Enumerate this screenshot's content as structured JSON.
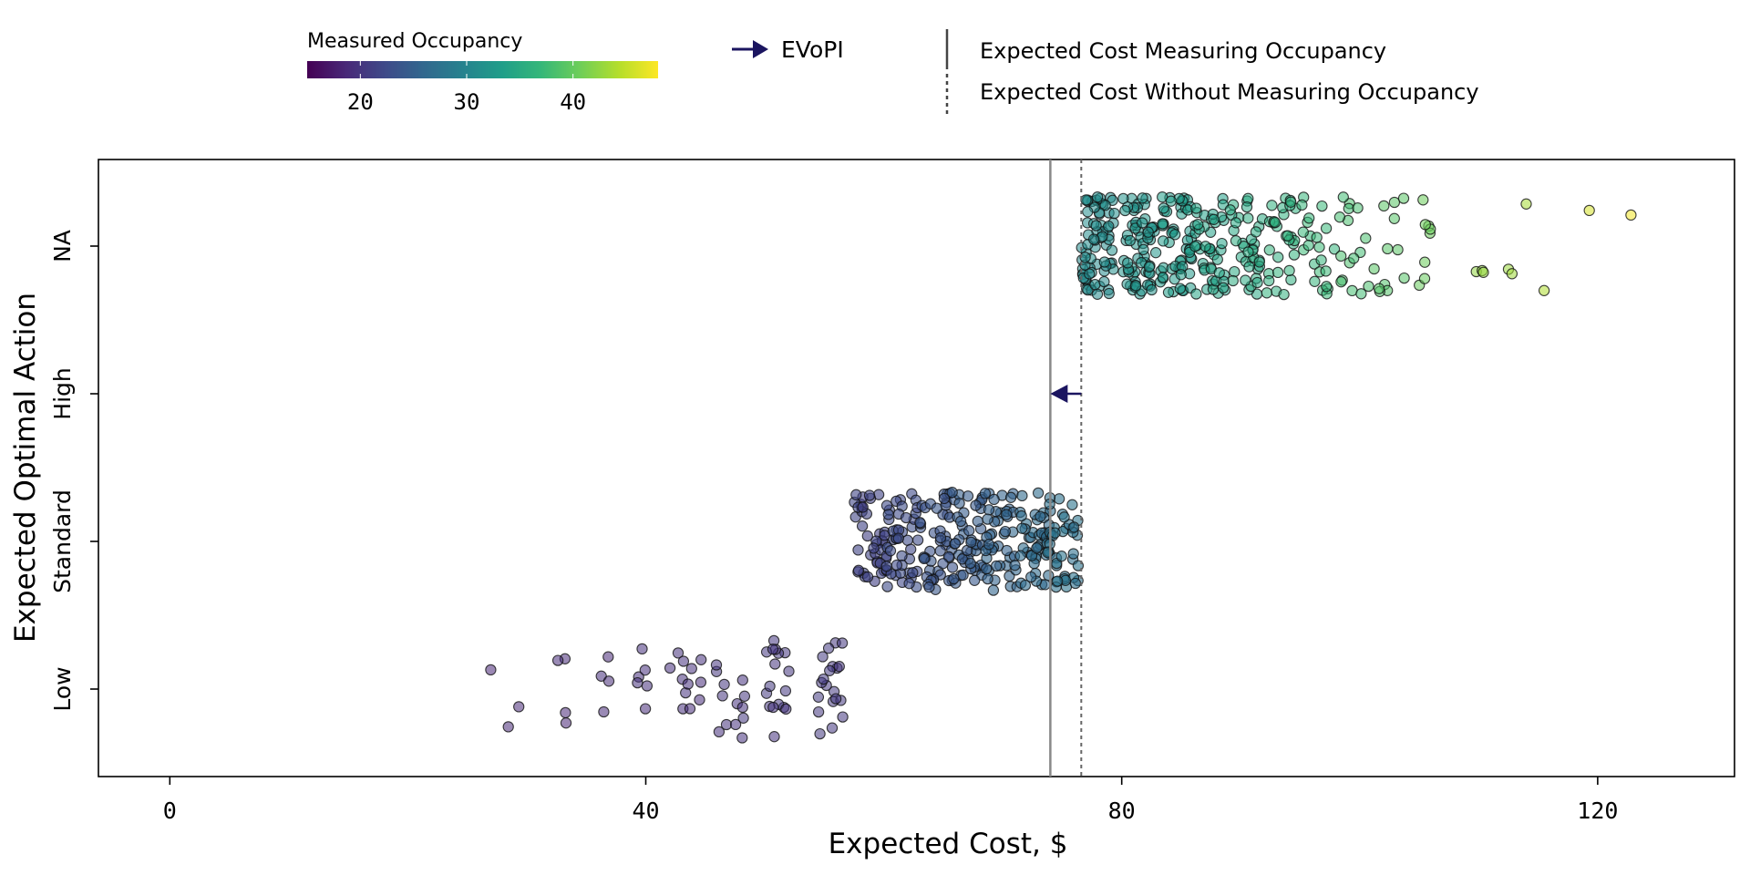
{
  "chart_data": {
    "type": "scatter",
    "subtype": "jittered strip plot (beeswarm)",
    "xlabel": "Expected Cost, $",
    "ylabel": "Expected Optimal Action",
    "xlim": [
      -6,
      131.5
    ],
    "x_ticks": [
      0,
      40,
      80,
      120
    ],
    "y_categories": [
      "Low",
      "Standard",
      "High",
      "NA"
    ],
    "colorbar": {
      "title": "Measured Occupancy",
      "ticks": [
        20,
        30,
        40
      ],
      "range": [
        15,
        48
      ],
      "colormap": "viridis",
      "stops": [
        "#440154",
        "#482878",
        "#3e4a89",
        "#31688e",
        "#26828e",
        "#1f9e89",
        "#35b779",
        "#6ece58",
        "#b5de2b",
        "#fde725"
      ]
    },
    "reference_lines": [
      {
        "label": "Expected Cost Measuring Occupancy",
        "x": 74.0,
        "style": "solid",
        "color": "#888888"
      },
      {
        "label": "Expected Cost Without Measuring Occupancy",
        "x": 76.6,
        "style": "dotted",
        "color": "#666666"
      }
    ],
    "evopi": {
      "label": "EVoPI",
      "category": "High",
      "from": 76.6,
      "to": 74.0,
      "color": "#1b1560"
    },
    "series": [
      {
        "category": "Low",
        "point_alpha": 0.55,
        "clusters": [
          {
            "x": 26.8,
            "occupancy": 18.4,
            "n": 1
          },
          {
            "x": 28.8,
            "occupancy": 18.6,
            "n": 2
          },
          {
            "x": 32.9,
            "occupancy": 18.8,
            "n": 4
          },
          {
            "x": 36.5,
            "occupancy": 19.0,
            "n": 4
          },
          {
            "x": 39.6,
            "occupancy": 19.3,
            "n": 6
          },
          {
            "x": 43.4,
            "occupancy": 19.5,
            "n": 12
          },
          {
            "x": 47.3,
            "occupancy": 19.8,
            "n": 13
          },
          {
            "x": 51.2,
            "occupancy": 20.0,
            "n": 17
          },
          {
            "x": 55.2,
            "occupancy": 20.3,
            "n": 20
          }
        ]
      },
      {
        "category": "Standard",
        "point_alpha": 0.6,
        "clusters": [
          {
            "x": 58.9,
            "occupancy": 21.5,
            "n": 42
          },
          {
            "x": 61.6,
            "occupancy": 22.5,
            "n": 44
          },
          {
            "x": 64.4,
            "occupancy": 23.5,
            "n": 46
          },
          {
            "x": 67.1,
            "occupancy": 24.5,
            "n": 46
          },
          {
            "x": 69.9,
            "occupancy": 25.5,
            "n": 46
          },
          {
            "x": 72.7,
            "occupancy": 26.5,
            "n": 46
          },
          {
            "x": 75.1,
            "occupancy": 27.5,
            "n": 40
          }
        ]
      },
      {
        "category": "NA",
        "point_alpha": 0.55,
        "clusters": [
          {
            "x": 78.0,
            "occupancy": 31.0,
            "n": 70
          },
          {
            "x": 81.5,
            "occupancy": 32.0,
            "n": 65
          },
          {
            "x": 84.5,
            "occupancy": 33.0,
            "n": 55
          },
          {
            "x": 87.5,
            "occupancy": 34.0,
            "n": 45
          },
          {
            "x": 90.5,
            "occupancy": 35.0,
            "n": 38
          },
          {
            "x": 93.5,
            "occupancy": 36.0,
            "n": 30
          },
          {
            "x": 96.5,
            "occupancy": 37.0,
            "n": 22
          },
          {
            "x": 99.5,
            "occupancy": 38.0,
            "n": 16
          },
          {
            "x": 102.5,
            "occupancy": 39.0,
            "n": 12
          },
          {
            "x": 105.5,
            "occupancy": 40.5,
            "n": 8
          }
        ],
        "outliers": [
          {
            "x": 109.8,
            "occupancy": 42.5
          },
          {
            "x": 110.3,
            "occupancy": 42.5
          },
          {
            "x": 110.4,
            "occupancy": 42.8
          },
          {
            "x": 112.5,
            "occupancy": 43.0
          },
          {
            "x": 112.8,
            "occupancy": 43.2
          },
          {
            "x": 114.0,
            "occupancy": 43.5
          },
          {
            "x": 115.5,
            "occupancy": 44.0
          },
          {
            "x": 119.3,
            "occupancy": 46.0
          },
          {
            "x": 122.8,
            "occupancy": 47.5
          }
        ]
      }
    ],
    "grid": false,
    "legend_position": "top"
  },
  "legend": {
    "evopi_label": "EVoPI",
    "measuring_label": "Expected Cost Measuring Occupancy",
    "without_label": "Expected Cost Without Measuring Occupancy"
  }
}
